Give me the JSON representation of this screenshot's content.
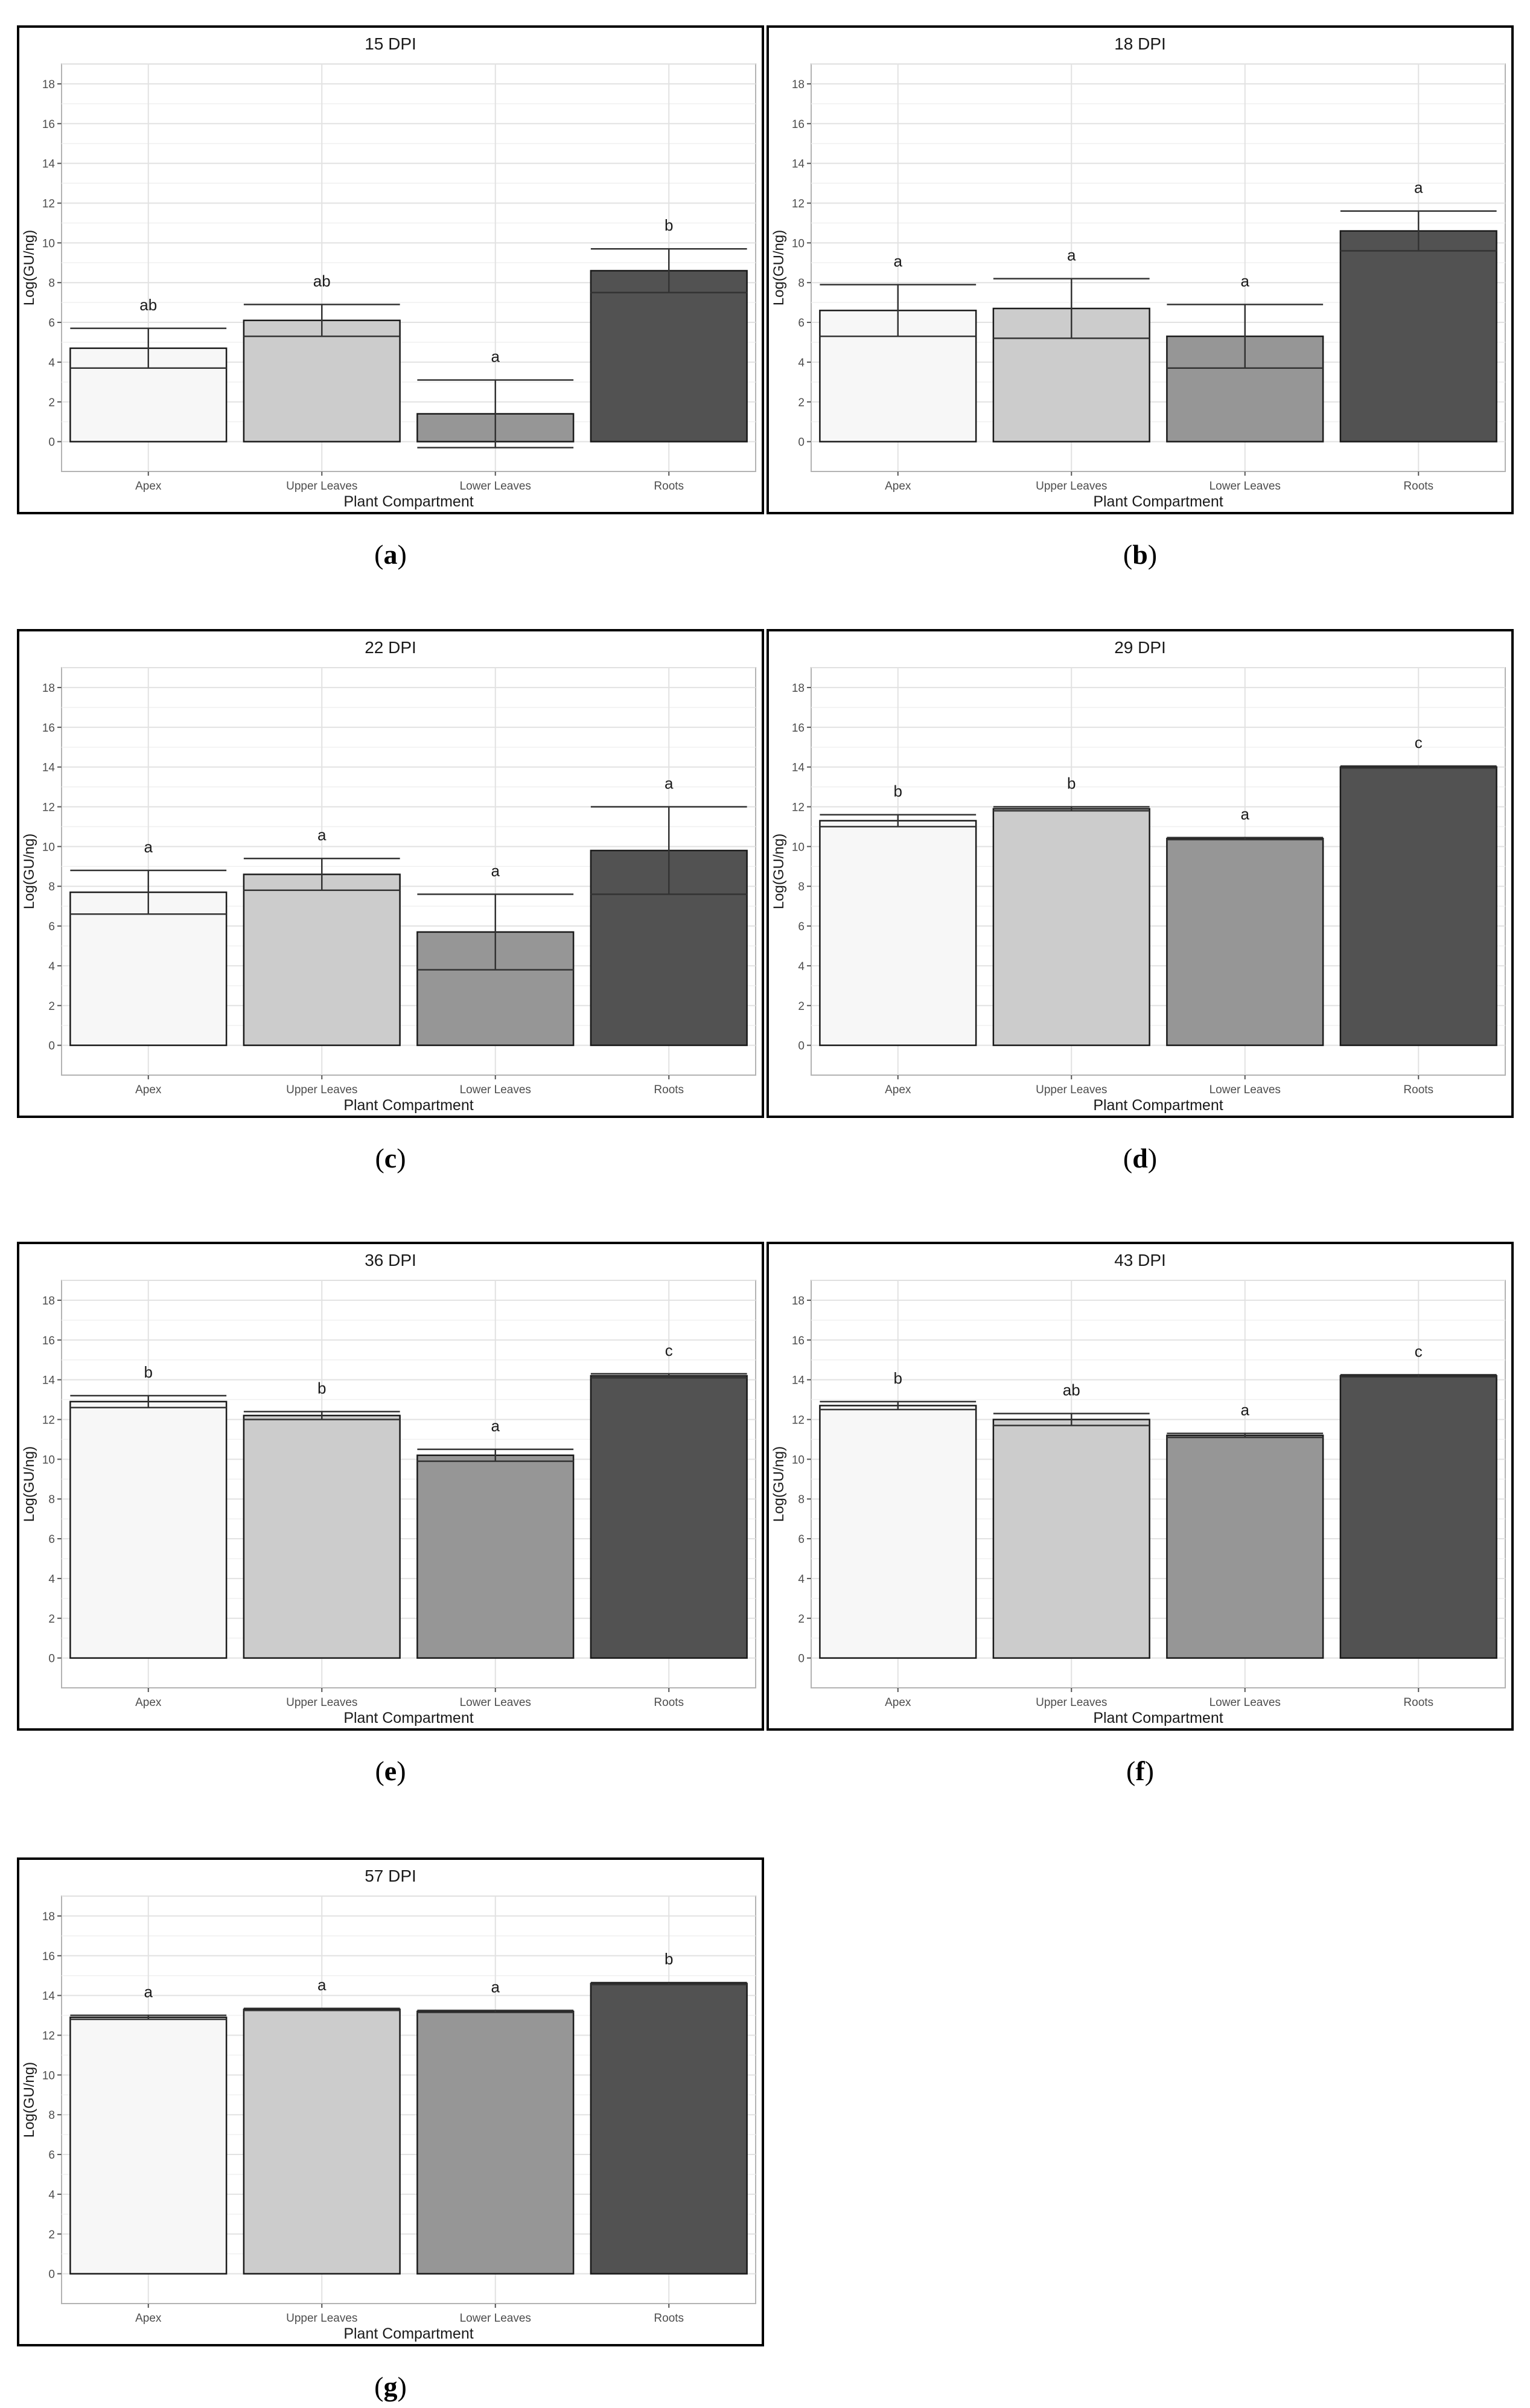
{
  "figure": {
    "colors": {
      "Apex": "#f7f7f7",
      "Upper Leaves": "#cccccc",
      "Lower Leaves": "#969696",
      "Roots": "#525252"
    }
  },
  "chart_data": [
    {
      "type": "bar",
      "panel": "a",
      "title": "15 DPI",
      "xlabel": "Plant Compartment",
      "ylabel": "Log(GU/ng)",
      "categories": [
        "Apex",
        "Upper Leaves",
        "Lower Leaves",
        "Roots"
      ],
      "values": [
        4.7,
        6.1,
        1.4,
        8.6
      ],
      "error": [
        1.0,
        0.8,
        1.7,
        1.1
      ],
      "letters": [
        "ab",
        "ab",
        "a",
        "b"
      ],
      "yticks": [
        0,
        2,
        4,
        6,
        8,
        10,
        12,
        14,
        16,
        18
      ],
      "ylim": [
        -1.5,
        19
      ],
      "grid": true,
      "caption_left": "(",
      "caption_letter": "a",
      "caption_right": ")"
    },
    {
      "type": "bar",
      "panel": "b",
      "title": "18 DPI",
      "xlabel": "Plant Compartment",
      "ylabel": "Log(GU/ng)",
      "categories": [
        "Apex",
        "Upper Leaves",
        "Lower Leaves",
        "Roots"
      ],
      "values": [
        6.6,
        6.7,
        5.3,
        10.6
      ],
      "error": [
        1.3,
        1.5,
        1.6,
        1.0
      ],
      "letters": [
        "a",
        "a",
        "a",
        "a"
      ],
      "yticks": [
        0,
        2,
        4,
        6,
        8,
        10,
        12,
        14,
        16,
        18
      ],
      "ylim": [
        -1.5,
        19
      ],
      "grid": true,
      "caption_left": "(",
      "caption_letter": "b",
      "caption_right": ")"
    },
    {
      "type": "bar",
      "panel": "c",
      "title": "22 DPI",
      "xlabel": "Plant Compartment",
      "ylabel": "Log(GU/ng)",
      "categories": [
        "Apex",
        "Upper Leaves",
        "Lower Leaves",
        "Roots"
      ],
      "values": [
        7.7,
        8.6,
        5.7,
        9.8
      ],
      "error": [
        1.1,
        0.8,
        1.9,
        2.2
      ],
      "letters": [
        "a",
        "a",
        "a",
        "a"
      ],
      "yticks": [
        0,
        2,
        4,
        6,
        8,
        10,
        12,
        14,
        16,
        18
      ],
      "ylim": [
        -1.5,
        19
      ],
      "grid": true,
      "caption_left": "(",
      "caption_letter": "c",
      "caption_right": ")"
    },
    {
      "type": "bar",
      "panel": "d",
      "title": "29 DPI",
      "xlabel": "Plant Compartment",
      "ylabel": "Log(GU/ng)",
      "categories": [
        "Apex",
        "Upper Leaves",
        "Lower Leaves",
        "Roots"
      ],
      "values": [
        11.3,
        11.9,
        10.4,
        14.0
      ],
      "error": [
        0.3,
        0.1,
        0.05,
        0.05
      ],
      "letters": [
        "b",
        "b",
        "a",
        "c"
      ],
      "yticks": [
        0,
        2,
        4,
        6,
        8,
        10,
        12,
        14,
        16,
        18
      ],
      "ylim": [
        -1.5,
        19
      ],
      "grid": true,
      "caption_left": "(",
      "caption_letter": "d",
      "caption_right": ")"
    },
    {
      "type": "bar",
      "panel": "e",
      "title": "36 DPI",
      "xlabel": "Plant Compartment",
      "ylabel": "Log(GU/ng)",
      "categories": [
        "Apex",
        "Upper Leaves",
        "Lower Leaves",
        "Roots"
      ],
      "values": [
        12.9,
        12.2,
        10.2,
        14.2
      ],
      "error": [
        0.3,
        0.2,
        0.3,
        0.1
      ],
      "letters": [
        "b",
        "b",
        "a",
        "c"
      ],
      "yticks": [
        0,
        2,
        4,
        6,
        8,
        10,
        12,
        14,
        16,
        18
      ],
      "ylim": [
        -1.5,
        19
      ],
      "grid": true,
      "caption_left": "(",
      "caption_letter": "e",
      "caption_right": ")"
    },
    {
      "type": "bar",
      "panel": "f",
      "title": "43 DPI",
      "xlabel": "Plant Compartment",
      "ylabel": "Log(GU/ng)",
      "categories": [
        "Apex",
        "Upper Leaves",
        "Lower Leaves",
        "Roots"
      ],
      "values": [
        12.7,
        12.0,
        11.2,
        14.2
      ],
      "error": [
        0.2,
        0.3,
        0.1,
        0.05
      ],
      "letters": [
        "b",
        "ab",
        "a",
        "c"
      ],
      "yticks": [
        0,
        2,
        4,
        6,
        8,
        10,
        12,
        14,
        16,
        18
      ],
      "ylim": [
        -1.5,
        19
      ],
      "grid": true,
      "caption_left": "(",
      "caption_letter": "f",
      "caption_right": ")"
    },
    {
      "type": "bar",
      "panel": "g",
      "title": "57 DPI",
      "xlabel": "Plant Compartment",
      "ylabel": "Log(GU/ng)",
      "categories": [
        "Apex",
        "Upper Leaves",
        "Lower Leaves",
        "Roots"
      ],
      "values": [
        12.9,
        13.3,
        13.2,
        14.6
      ],
      "error": [
        0.1,
        0.05,
        0.05,
        0.05
      ],
      "letters": [
        "a",
        "a",
        "a",
        "b"
      ],
      "yticks": [
        0,
        2,
        4,
        6,
        8,
        10,
        12,
        14,
        16,
        18
      ],
      "ylim": [
        -1.5,
        19
      ],
      "grid": true,
      "caption_left": "(",
      "caption_letter": "g",
      "caption_right": ")"
    }
  ]
}
